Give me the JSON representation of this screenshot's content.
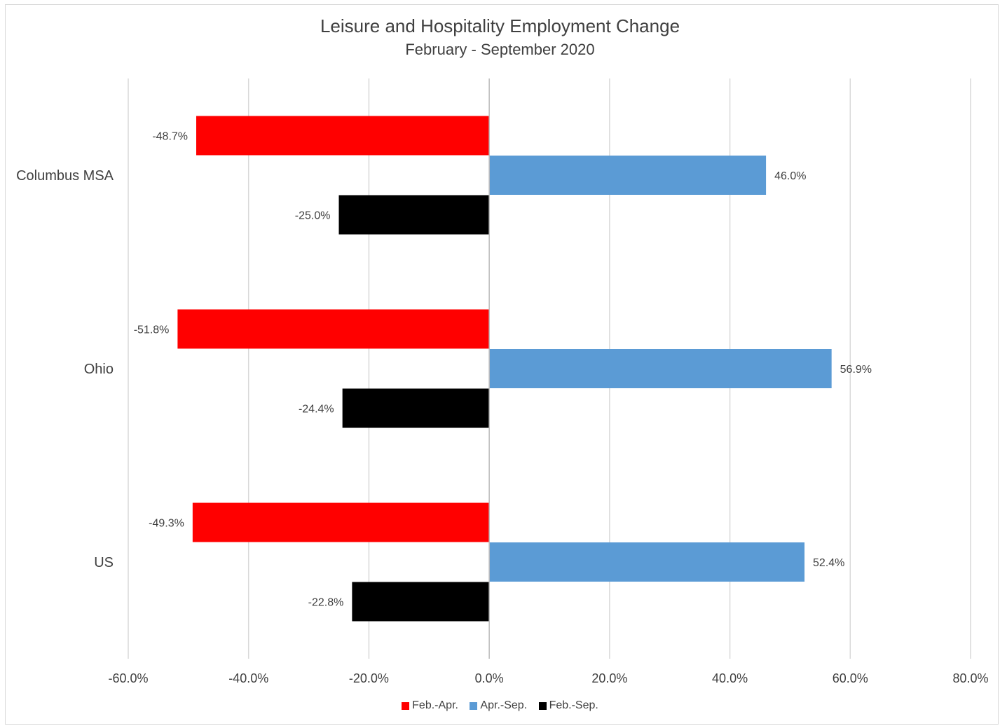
{
  "chart_data": {
    "type": "bar",
    "orientation": "horizontal",
    "title": "Leisure and Hospitality Employment Change",
    "subtitle": "February - September 2020",
    "categories": [
      "Columbus MSA",
      "Ohio",
      "US"
    ],
    "series": [
      {
        "name": "Feb.-Apr.",
        "color": "#ff0000",
        "values": [
          -48.7,
          -51.8,
          -49.3
        ],
        "labels": [
          "-48.7%",
          "-51.8%",
          "-49.3%"
        ]
      },
      {
        "name": "Apr.-Sep.",
        "color": "#5b9bd5",
        "values": [
          46.0,
          56.9,
          52.4
        ],
        "labels": [
          "46.0%",
          "56.9%",
          "52.4%"
        ]
      },
      {
        "name": "Feb.-Sep.",
        "color": "#000000",
        "values": [
          -25.0,
          -24.4,
          -22.8
        ],
        "labels": [
          "-25.0%",
          "-24.4%",
          "-22.8%"
        ]
      }
    ],
    "xlim": [
      -60,
      80
    ],
    "xticks": [
      -60,
      -40,
      -20,
      0,
      20,
      40,
      60,
      80
    ],
    "xtick_labels": [
      "-60.0%",
      "-40.0%",
      "-20.0%",
      "0.0%",
      "20.0%",
      "40.0%",
      "60.0%",
      "80.0%"
    ],
    "grid": "vertical",
    "legend_position": "bottom"
  }
}
